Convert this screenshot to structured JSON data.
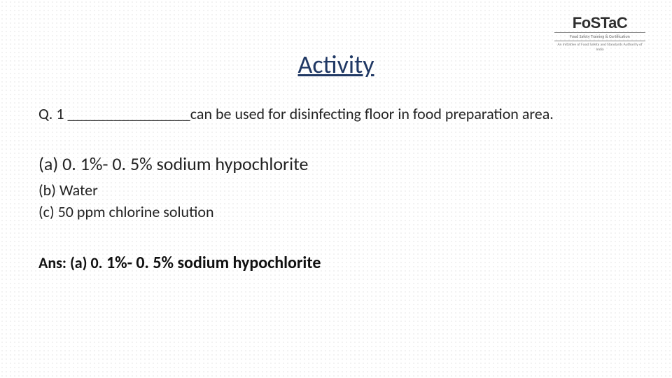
{
  "logo": {
    "main": "FoSTaC",
    "sub1": "Food Safety Training & Certification",
    "sub2": "An Initiative of Food Safety and Standards Authority of India"
  },
  "title": "Activity",
  "question": {
    "prefix": "Q. 1 ",
    "blank": "________________",
    "rest": "can be used for disinfecting floor in food preparation area."
  },
  "options": {
    "a": "(a) 0. 1%- 0. 5% sodium hypochlorite",
    "b": "(b) Water",
    "c": "(c) 50 ppm chlorine solution"
  },
  "answer": {
    "label": "Ans: (a) 0.",
    "bold": " 1%- 0. 5% sodium hypochlorite"
  },
  "colors": {
    "title": "#203864",
    "text": "#222222",
    "dot": "#c9c9c9",
    "bg": "#ffffff"
  }
}
